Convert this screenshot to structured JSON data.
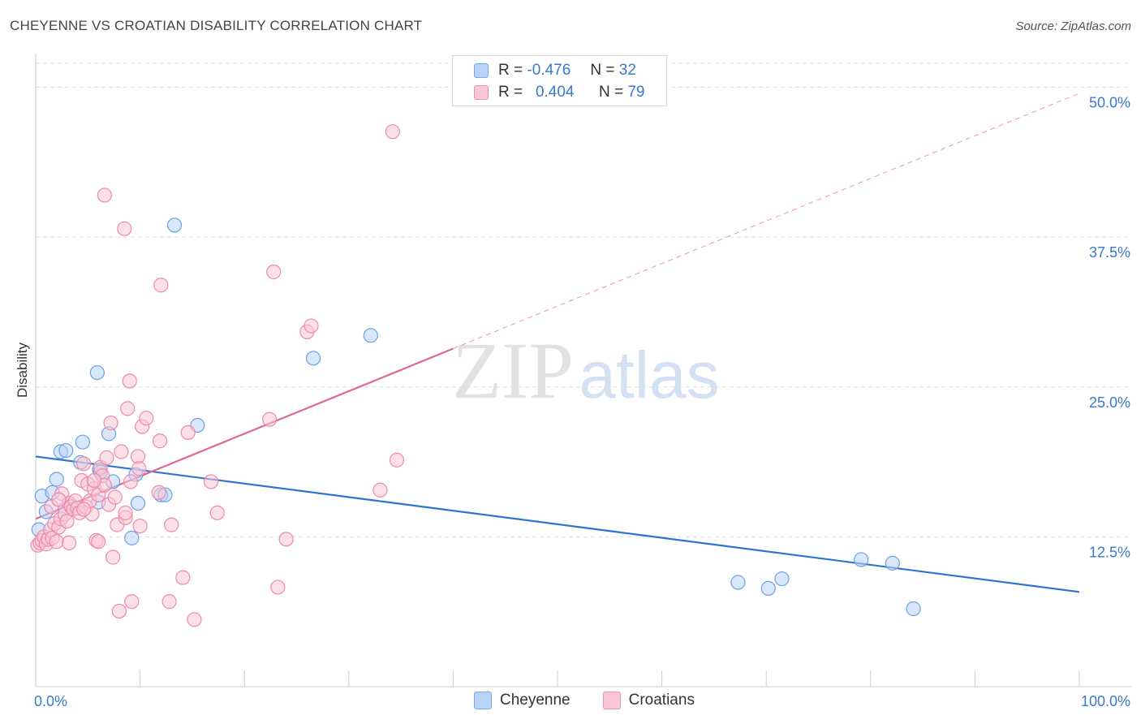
{
  "title": "CHEYENNE VS CROATIAN DISABILITY CORRELATION CHART",
  "source": "Source: ZipAtlas.com",
  "watermark": {
    "zip": "ZIP",
    "atlas": "atlas"
  },
  "colors": {
    "blue_fill": "#b9d3f7",
    "blue_stroke": "#6f9fe3",
    "blue_line": "#2f73d0",
    "pink_fill": "#f9c6d6",
    "pink_stroke": "#ec8aaa",
    "pink_line": "#e0688f",
    "tick_label": "#3a78d0",
    "grid": "#dddddd"
  },
  "legend": {
    "rows": [
      {
        "r_label": "R =",
        "r_value": "-0.476",
        "n_label": "N =",
        "n_value": "32"
      },
      {
        "r_label": "R =",
        "r_value": "0.404",
        "n_label": "N =",
        "n_value": "79"
      }
    ]
  },
  "bottom_legend": [
    "Cheyenne",
    "Croatians"
  ],
  "chart_data": {
    "type": "scatter",
    "title": "CHEYENNE VS CROATIAN DISABILITY CORRELATION CHART",
    "xlabel": "",
    "ylabel": "Disability",
    "xlim": [
      0,
      100
    ],
    "ylim": [
      0,
      52
    ],
    "x_tick_labels": [
      "0.0%",
      "100.0%"
    ],
    "y_ticks": [
      12.5,
      25.0,
      37.5,
      50.0
    ],
    "y_tick_labels": [
      "12.5%",
      "25.0%",
      "37.5%",
      "50.0%"
    ],
    "grid": true,
    "legend_position": "top-center",
    "series": [
      {
        "name": "Cheyenne",
        "r": -0.476,
        "n": 32,
        "trend": {
          "x": [
            0,
            100
          ],
          "y": [
            19.2,
            7.9
          ],
          "dashed_extension": false
        },
        "points": [
          [
            0.3,
            13.1
          ],
          [
            0.6,
            15.9
          ],
          [
            1.0,
            14.6
          ],
          [
            1.6,
            16.2
          ],
          [
            2.0,
            17.3
          ],
          [
            2.4,
            19.6
          ],
          [
            2.8,
            14.8
          ],
          [
            2.9,
            19.7
          ],
          [
            3.4,
            15.1
          ],
          [
            4.3,
            18.7
          ],
          [
            4.5,
            20.4
          ],
          [
            5.9,
            26.2
          ],
          [
            6.0,
            15.4
          ],
          [
            6.1,
            18.1
          ],
          [
            7.0,
            21.1
          ],
          [
            7.4,
            17.1
          ],
          [
            9.2,
            12.4
          ],
          [
            9.6,
            17.7
          ],
          [
            9.8,
            15.3
          ],
          [
            12.0,
            16.0
          ],
          [
            12.4,
            16.0
          ],
          [
            13.3,
            38.5
          ],
          [
            15.5,
            21.8
          ],
          [
            26.6,
            27.4
          ],
          [
            32.1,
            29.3
          ],
          [
            67.3,
            8.7
          ],
          [
            70.2,
            8.2
          ],
          [
            71.5,
            9.0
          ],
          [
            79.1,
            10.6
          ],
          [
            82.1,
            10.3
          ],
          [
            84.1,
            6.5
          ],
          [
            6.2,
            17.9
          ]
        ]
      },
      {
        "name": "Croatians",
        "r": 0.404,
        "n": 79,
        "trend": {
          "x": [
            0,
            40
          ],
          "y": [
            14.0,
            28.2
          ],
          "dashed_extension": {
            "x": [
              40,
              100
            ],
            "y": [
              28.2,
              49.5
            ]
          }
        },
        "points": [
          [
            0.2,
            11.8
          ],
          [
            0.4,
            12.0
          ],
          [
            0.6,
            12.2
          ],
          [
            0.8,
            12.5
          ],
          [
            1.0,
            11.9
          ],
          [
            1.2,
            12.3
          ],
          [
            1.4,
            13.1
          ],
          [
            1.5,
            15.0
          ],
          [
            1.6,
            12.4
          ],
          [
            1.8,
            13.6
          ],
          [
            2.0,
            12.1
          ],
          [
            2.2,
            13.3
          ],
          [
            2.4,
            14.0
          ],
          [
            2.5,
            16.1
          ],
          [
            2.8,
            14.4
          ],
          [
            3.0,
            13.8
          ],
          [
            3.2,
            15.3
          ],
          [
            3.4,
            15.0
          ],
          [
            3.6,
            14.8
          ],
          [
            3.8,
            15.5
          ],
          [
            4.0,
            14.9
          ],
          [
            4.2,
            14.5
          ],
          [
            4.4,
            17.2
          ],
          [
            4.6,
            18.6
          ],
          [
            4.8,
            15.0
          ],
          [
            5.0,
            16.9
          ],
          [
            5.2,
            15.5
          ],
          [
            5.4,
            14.4
          ],
          [
            5.6,
            16.5
          ],
          [
            5.8,
            12.2
          ],
          [
            6.0,
            16.0
          ],
          [
            6.2,
            18.3
          ],
          [
            6.4,
            17.6
          ],
          [
            6.6,
            16.8
          ],
          [
            6.8,
            19.1
          ],
          [
            7.0,
            15.2
          ],
          [
            7.2,
            22.0
          ],
          [
            7.4,
            10.8
          ],
          [
            7.6,
            15.8
          ],
          [
            7.8,
            13.5
          ],
          [
            8.0,
            6.3
          ],
          [
            8.2,
            19.6
          ],
          [
            8.5,
            38.2
          ],
          [
            8.6,
            14.1
          ],
          [
            8.8,
            23.2
          ],
          [
            9.0,
            25.5
          ],
          [
            9.1,
            17.1
          ],
          [
            9.2,
            7.1
          ],
          [
            9.8,
            19.2
          ],
          [
            9.9,
            18.2
          ],
          [
            10.0,
            13.4
          ],
          [
            10.2,
            21.7
          ],
          [
            10.6,
            22.4
          ],
          [
            11.8,
            16.2
          ],
          [
            11.9,
            20.5
          ],
          [
            12.0,
            33.5
          ],
          [
            12.8,
            7.1
          ],
          [
            13.0,
            13.5
          ],
          [
            14.1,
            9.1
          ],
          [
            14.6,
            21.2
          ],
          [
            15.2,
            5.6
          ],
          [
            16.8,
            17.1
          ],
          [
            17.4,
            14.5
          ],
          [
            22.4,
            22.3
          ],
          [
            22.8,
            34.6
          ],
          [
            23.2,
            8.3
          ],
          [
            24.0,
            12.3
          ],
          [
            26.0,
            29.6
          ],
          [
            26.4,
            30.1
          ],
          [
            33.0,
            16.4
          ],
          [
            34.2,
            46.3
          ],
          [
            34.6,
            18.9
          ],
          [
            6.0,
            12.1
          ],
          [
            6.6,
            41.0
          ],
          [
            3.2,
            12.0
          ],
          [
            4.6,
            14.8
          ],
          [
            2.2,
            15.6
          ],
          [
            5.6,
            17.2
          ],
          [
            8.6,
            14.5
          ]
        ]
      }
    ]
  }
}
